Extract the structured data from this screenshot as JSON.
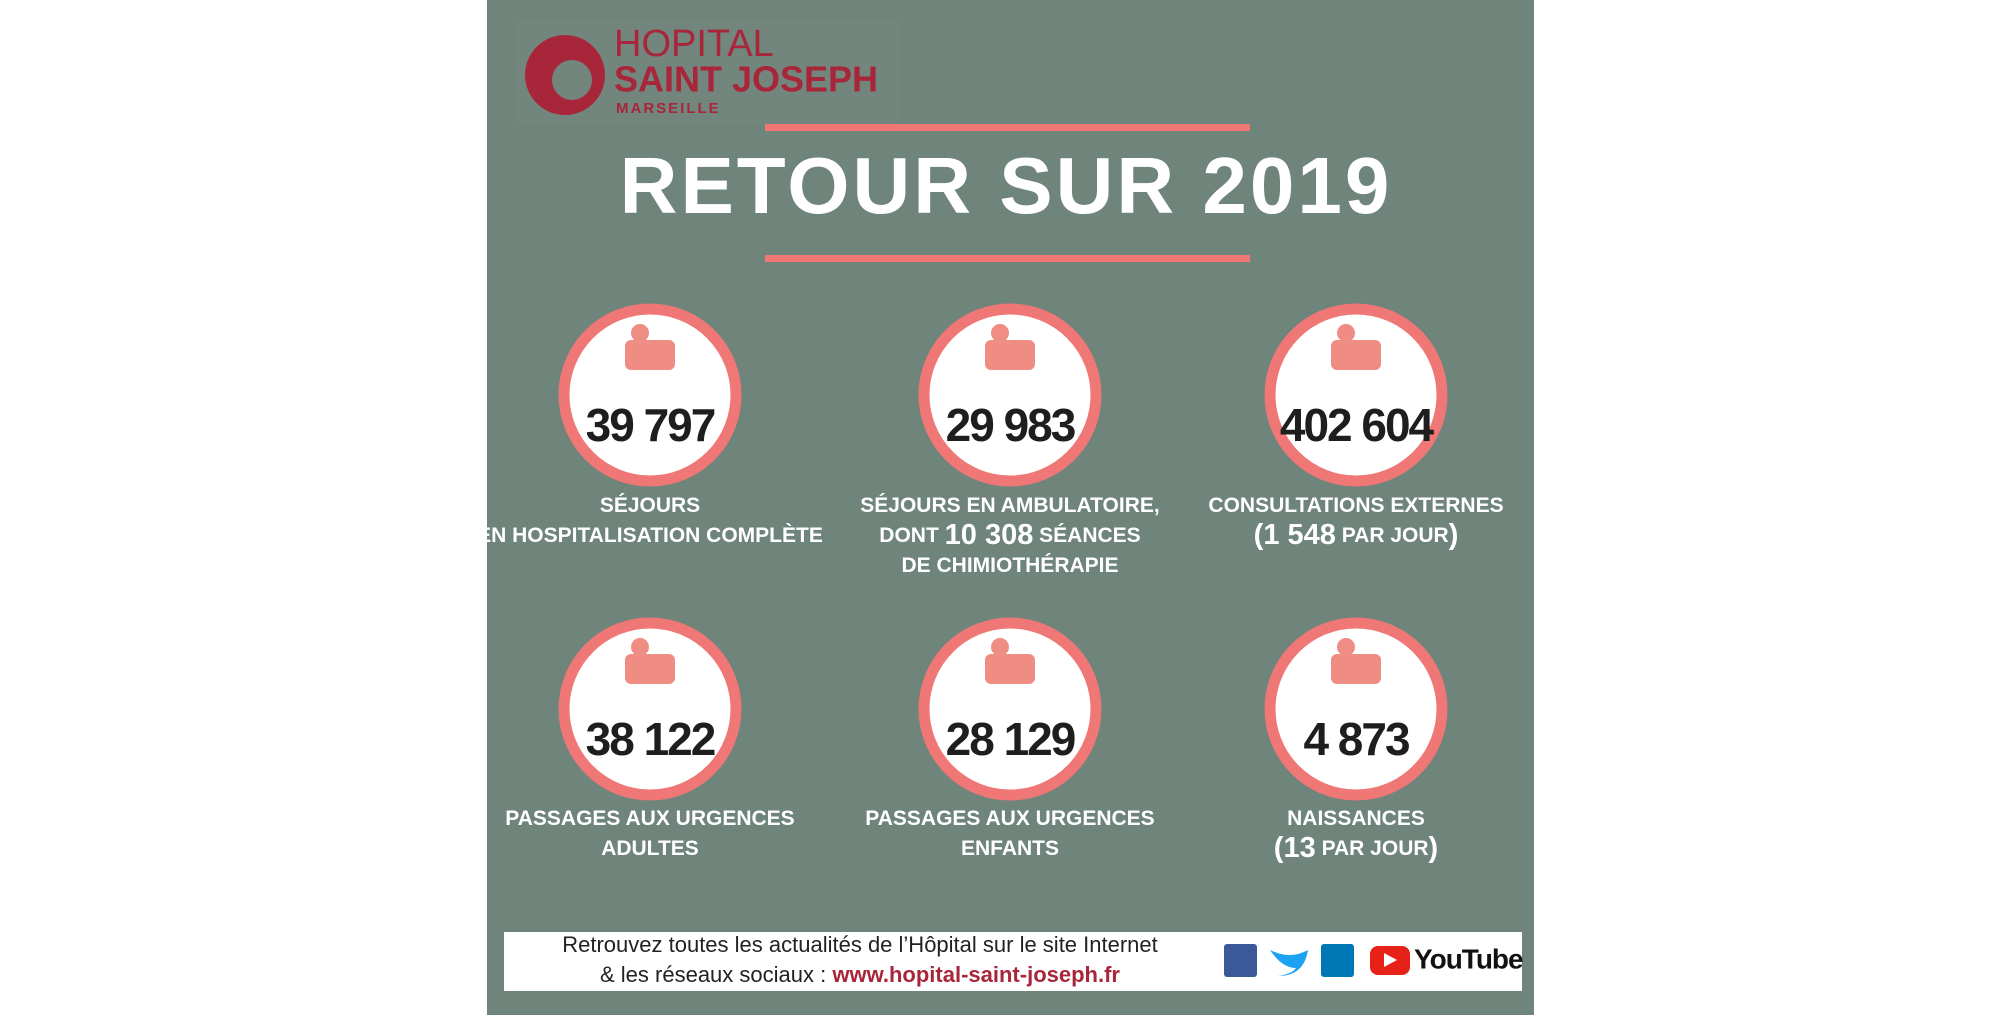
{
  "header": {
    "logo": {
      "line1": "HOPITAL",
      "line2": "SAINT JOSEPH",
      "line3": "MARSEILLE"
    },
    "title": "RETOUR SUR 2019"
  },
  "stats": [
    {
      "number": "39 797",
      "lines": [
        [
          "SÉJOURS"
        ],
        [
          "EN HOSPITALISATION COMPLÈTE"
        ]
      ]
    },
    {
      "number": "29 983",
      "lines": [
        [
          "SÉJOURS EN AMBULATOIRE,"
        ],
        [
          "DONT ",
          "10 308",
          " SÉANCES"
        ],
        [
          "DE CHIMIOTHÉRAPIE"
        ]
      ]
    },
    {
      "number": "402 604",
      "lines": [
        [
          "CONSULTATIONS EXTERNES"
        ],
        [
          "(",
          "1 548",
          " PAR JOUR",
          ")"
        ]
      ]
    },
    {
      "number": "38 122",
      "lines": [
        [
          "PASSAGES AUX URGENCES"
        ],
        [
          "ADULTES"
        ]
      ]
    },
    {
      "number": "28 129",
      "lines": [
        [
          "PASSAGES AUX URGENCES"
        ],
        [
          "ENFANTS"
        ]
      ]
    },
    {
      "number": "4 873",
      "lines": [
        [
          "NAISSANCES"
        ],
        [
          "(",
          "13",
          " PAR JOUR",
          ")"
        ]
      ]
    }
  ],
  "footer": {
    "line1": "Retrouvez toutes les actualités de l’Hôpital sur le site Internet",
    "line2": "& les réseaux sociaux : ",
    "url": "www.hopital-saint-joseph.fr",
    "youtube": "YouTube"
  }
}
